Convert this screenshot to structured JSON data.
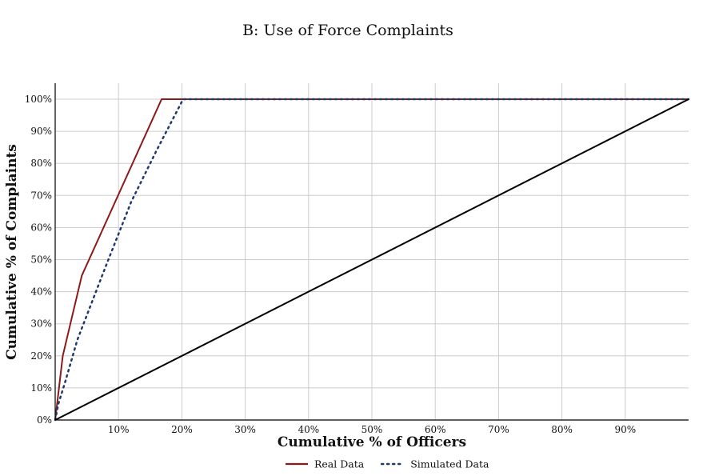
{
  "chart_data": {
    "type": "line",
    "title": "B: Use of Force Complaints",
    "xlabel": "Cumulative % of Officers",
    "ylabel": "Cumulative % of Complaints",
    "xlim": [
      0,
      100
    ],
    "ylim": [
      0,
      100
    ],
    "x_ticks": [
      10,
      20,
      30,
      40,
      50,
      60,
      70,
      80,
      90
    ],
    "x_tick_labels": [
      "10%",
      "20%",
      "30%",
      "40%",
      "50%",
      "60%",
      "70%",
      "80%",
      "90%"
    ],
    "y_ticks": [
      0,
      10,
      20,
      30,
      40,
      50,
      60,
      70,
      80,
      90,
      100
    ],
    "y_tick_labels": [
      "0%",
      "10%",
      "20%",
      "30%",
      "40%",
      "50%",
      "60%",
      "70%",
      "80%",
      "90%",
      "100%"
    ],
    "grid": true,
    "legend_position": "bottom-center",
    "series": [
      {
        "name": "Real Data",
        "style": "solid",
        "color": "#8b1a1a",
        "points": [
          [
            0,
            0
          ],
          [
            0.3,
            5
          ],
          [
            1.2,
            20
          ],
          [
            4.2,
            45
          ],
          [
            16.8,
            100
          ],
          [
            100,
            100
          ]
        ]
      },
      {
        "name": "Simulated Data",
        "style": "dotted",
        "color": "#1f3a6e",
        "points": [
          [
            0,
            0
          ],
          [
            0.5,
            5
          ],
          [
            1.6,
            12
          ],
          [
            3.5,
            25
          ],
          [
            8,
            48
          ],
          [
            12,
            68
          ],
          [
            16,
            84
          ],
          [
            20.2,
            100
          ],
          [
            100,
            100
          ]
        ]
      },
      {
        "style": "solid",
        "color": "#000000",
        "points": [
          [
            0,
            0
          ],
          [
            100,
            100
          ]
        ]
      }
    ]
  }
}
